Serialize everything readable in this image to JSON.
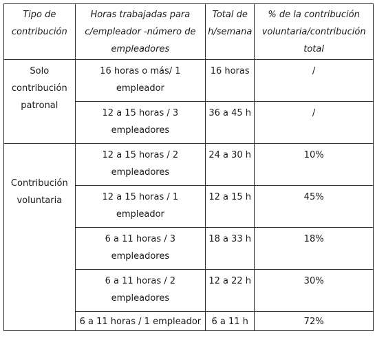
{
  "table": {
    "headers": [
      "Tipo de contribución",
      "Horas trabajadas para c/empleador -número de empleadores",
      "Total de h/semana",
      "% de la contribución voluntaria/contribución total"
    ],
    "groups": [
      {
        "label": "Solo contribución patronal",
        "rows": [
          {
            "horas": "16 horas o más/ 1 empleador",
            "total": "16 horas",
            "pct": "/"
          },
          {
            "horas": "12 a 15 horas / 3 empleadores",
            "total": "36 a 45 h",
            "pct": "/"
          }
        ]
      },
      {
        "label": "Contribución voluntaria",
        "rows": [
          {
            "horas": "12 a 15 horas / 2 empleadores",
            "total": "24 a 30 h",
            "pct": "10%"
          },
          {
            "horas": "12 a 15 horas / 1 empleador",
            "total": "12 a 15 h",
            "pct": "45%"
          },
          {
            "horas": "6 a 11 horas / 3 empleadores",
            "total": "18 a 33 h",
            "pct": "18%"
          },
          {
            "horas": "6 a 11 horas / 2 empleadores",
            "total": "12 a 22 h",
            "pct": "30%"
          },
          {
            "horas": "6 a 11 horas / 1 empleador",
            "total": "6 a 11 h",
            "pct": "72%"
          }
        ]
      }
    ]
  }
}
